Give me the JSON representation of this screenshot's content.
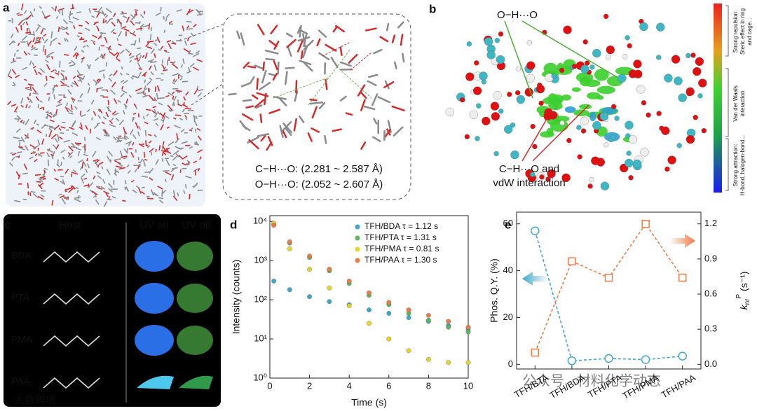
{
  "panels": {
    "a": {
      "label": "a",
      "ch_o": "C−H···O: (2.281 ~ 2.587 Å)",
      "oh_o": "O−H···O: (2.052 ~ 2.607 Å)"
    },
    "b": {
      "label": "b",
      "oh_o": "O−H···O",
      "ch_o": [
        "C−H···O and",
        "vdW interaction"
      ],
      "colorbar": [
        [
          "Strong repulsion:",
          "Steric effect in ring",
          "and cage..."
        ],
        [
          "Van der Waals",
          "interaction"
        ],
        [
          "Strong attraction:",
          "H-bond, halogen-bond..."
        ]
      ]
    },
    "c": {
      "label": "c",
      "headers": [
        "Host",
        "UV on",
        "UV off"
      ],
      "rows": [
        "BDA",
        "PTA",
        "PMA",
        "PAA"
      ]
    },
    "d": {
      "label": "d"
    },
    "e": {
      "label": "e"
    }
  },
  "watermarks": [
    "大数跨境",
    "公众号 · 材料化学动态"
  ],
  "chart_data": [
    {
      "type": "scatter",
      "log_y": true,
      "legend": "upper right",
      "xlabel": "Time (s)",
      "ylabel": "Intensity (counts)",
      "x": [
        0.2,
        1,
        2,
        3,
        4,
        5,
        6,
        7,
        8,
        9,
        10
      ],
      "series": [
        {
          "name": "TFH/BDA  τ = 1.12 s",
          "color": "#3fa7c9",
          "values": [
            300,
            180,
            120,
            90,
            75,
            55,
            45,
            35,
            28,
            22,
            18
          ]
        },
        {
          "name": "TFH/PTA  τ = 1.31 s",
          "color": "#5bb85a",
          "values": [
            8000,
            2800,
            1200,
            550,
            260,
            130,
            75,
            45,
            30,
            20,
            15
          ]
        },
        {
          "name": "TFH/PMA  τ = 0.81 s",
          "color": "#e8d52a",
          "values": [
            9000,
            2000,
            600,
            200,
            70,
            25,
            10,
            5,
            3,
            2.5,
            2.5
          ]
        },
        {
          "name": "TFH/PAA  τ = 1.30 s",
          "color": "#ee7a45",
          "values": [
            8000,
            3000,
            1300,
            600,
            300,
            150,
            85,
            55,
            40,
            28,
            20
          ]
        }
      ],
      "xlim": [
        0,
        10
      ],
      "xticks": [
        0,
        2,
        4,
        6,
        8,
        10
      ],
      "ylim": [
        1,
        14000
      ],
      "yticks": [
        {
          "value": 1,
          "label": "10⁰"
        },
        {
          "value": 10,
          "label": "10¹"
        },
        {
          "value": 100,
          "label": "10²"
        },
        {
          "value": 1000,
          "label": "10³"
        },
        {
          "value": 10000,
          "label": "10⁴"
        }
      ]
    },
    {
      "type": "line",
      "ylabel": "Phos. Q.Y. (%)",
      "y2label": [
        "k",
        "nr",
        "P",
        " (s⁻¹)"
      ],
      "categories": [
        "TFH/BTA",
        "TFH/BDA",
        "TFH/PTA",
        "TFH/PMA",
        "TFH/PAA"
      ],
      "series": [
        {
          "color": "#3fa7c9",
          "marker": "circle",
          "values": [
            57,
            1.5,
            2.5,
            2,
            3.5
          ]
        },
        {
          "color": "#ee7a45",
          "marker": "square",
          "axis": "y2",
          "values": [
            0.1,
            0.88,
            0.74,
            1.2,
            0.74
          ]
        }
      ],
      "ylim": [
        -2,
        65
      ],
      "yticks": [
        0,
        20,
        40,
        60
      ],
      "y2lim": [
        -0.04,
        1.3
      ],
      "y2ticks": [
        {
          "value": 0,
          "label": "0.0"
        },
        0.3,
        0.6,
        0.9,
        1.2
      ]
    }
  ]
}
